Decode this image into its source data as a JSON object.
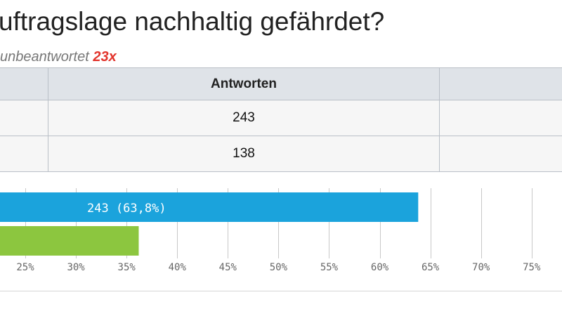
{
  "question": {
    "title": "uftragslage nachhaltig gefährdet?",
    "unanswered_label": "unbeantwortet",
    "unanswered_count": "23x"
  },
  "table": {
    "header": [
      "",
      "Antworten",
      ""
    ],
    "rows": [
      [
        "",
        "243",
        ""
      ],
      [
        "",
        "138",
        ""
      ]
    ]
  },
  "chart_data": {
    "type": "bar",
    "orientation": "horizontal",
    "series": [
      {
        "value_pct": 63.8,
        "count": 243,
        "label": "243 (63,8%)",
        "color": "#1ba3dc"
      },
      {
        "value_pct": 36.2,
        "count": 138,
        "label": "",
        "color": "#8cc63f"
      }
    ],
    "x_ticks": [
      "25%",
      "30%",
      "35%",
      "40%",
      "45%",
      "50%",
      "55%",
      "60%",
      "65%",
      "70%",
      "75%"
    ],
    "x_tick_values": [
      25,
      30,
      35,
      40,
      45,
      50,
      55,
      60,
      65,
      70,
      75
    ],
    "xlim": [
      22.5,
      78
    ],
    "grid": true,
    "colors": {
      "grid": "#c8c8c8",
      "tick_text": "#666666",
      "bar_text": "#ffffff"
    }
  }
}
